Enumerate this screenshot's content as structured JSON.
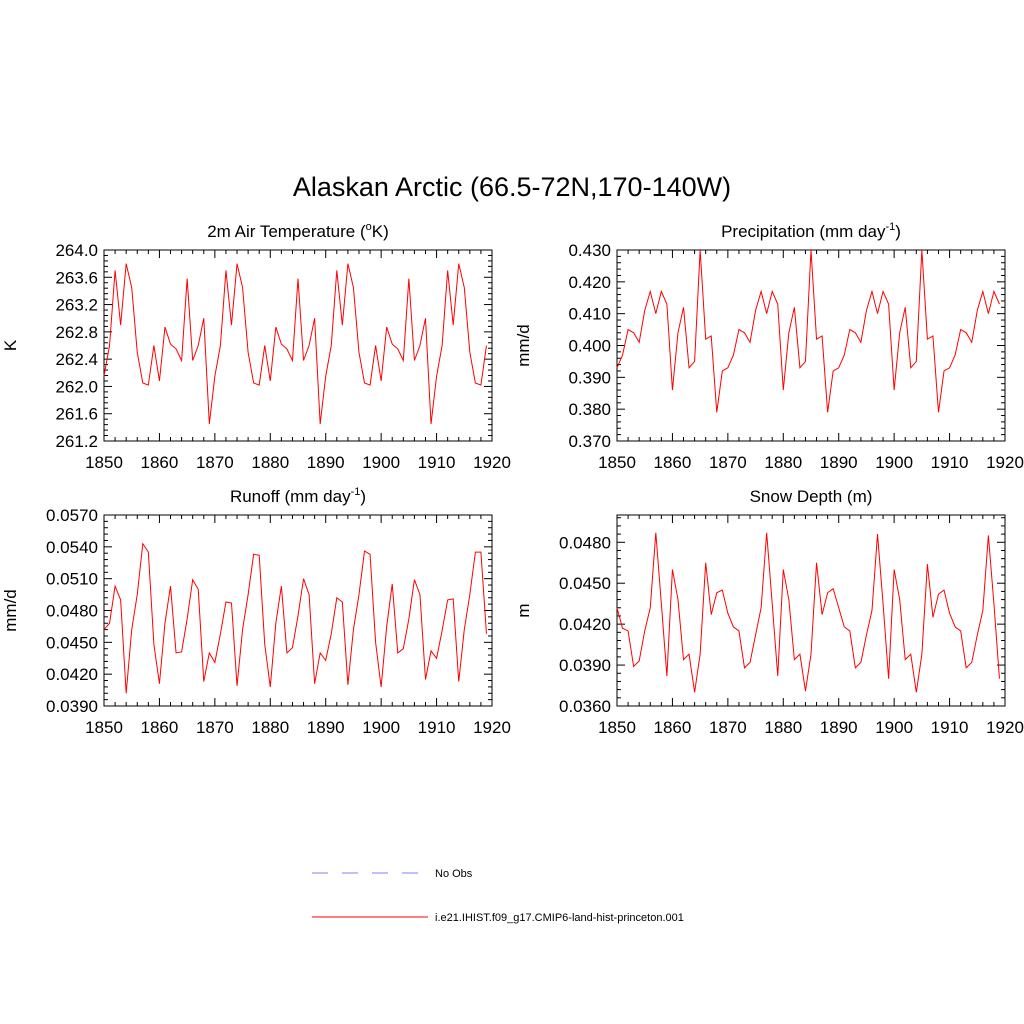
{
  "figure": {
    "title": "Alaskan Arctic (66.5-72N,170-140W)",
    "legend": [
      {
        "label": "No Obs",
        "color": "#9999ff",
        "dash": "dashed"
      },
      {
        "label": "i.e21.IHIST.f09_g17.CMIP6-land-hist-princeton.001",
        "color": "#ff0000",
        "dash": "solid"
      }
    ]
  },
  "chart_data": [
    {
      "type": "line",
      "title": "2m Air Temperature (",
      "title_sup": "o",
      "title_tail": "K)",
      "ylabel": "K",
      "xlabel": "",
      "xlim": [
        1850,
        1920
      ],
      "ylim": [
        261.2,
        264.0
      ],
      "x_ticks": [
        "1850",
        "1860",
        "1870",
        "1880",
        "1890",
        "1900",
        "1910",
        "1920"
      ],
      "y_ticks": [
        "264.0",
        "263.6",
        "263.2",
        "262.8",
        "262.4",
        "262.0",
        "261.6",
        "261.2"
      ],
      "x_start": 1850,
      "series": [
        {
          "color": "#ff0000",
          "values": [
            262.15,
            262.6,
            263.7,
            262.9,
            263.8,
            263.45,
            262.5,
            262.05,
            262.02,
            262.6,
            262.08,
            262.87,
            262.62,
            262.55,
            262.38,
            263.58,
            262.38,
            262.6,
            263.0,
            261.45,
            262.15,
            262.6,
            263.7,
            262.9,
            263.8,
            263.45,
            262.5,
            262.05,
            262.02,
            262.6,
            262.08,
            262.87,
            262.62,
            262.55,
            262.38,
            263.58,
            262.38,
            262.6,
            263.0,
            261.45,
            262.15,
            262.6,
            263.7,
            262.9,
            263.8,
            263.45,
            262.5,
            262.05,
            262.02,
            262.6,
            262.08,
            262.87,
            262.62,
            262.55,
            262.38,
            263.58,
            262.38,
            262.6,
            263.0,
            261.45,
            262.15,
            262.6,
            263.7,
            262.9,
            263.8,
            263.45,
            262.5,
            262.05,
            262.02,
            262.6
          ]
        }
      ]
    },
    {
      "type": "line",
      "title": "Precipitation (mm day",
      "title_sup": "-1",
      "title_tail": ")",
      "ylabel": "mm/d",
      "xlabel": "",
      "xlim": [
        1850,
        1920
      ],
      "ylim": [
        0.37,
        0.43
      ],
      "x_ticks": [
        "1850",
        "1860",
        "1870",
        "1880",
        "1890",
        "1900",
        "1910",
        "1920"
      ],
      "y_ticks": [
        "0.430",
        "0.420",
        "0.410",
        "0.400",
        "0.390",
        "0.380",
        "0.370"
      ],
      "x_start": 1850,
      "series": [
        {
          "color": "#ff0000",
          "values": [
            0.393,
            0.397,
            0.405,
            0.404,
            0.401,
            0.411,
            0.417,
            0.41,
            0.417,
            0.413,
            0.386,
            0.404,
            0.412,
            0.393,
            0.395,
            0.43,
            0.402,
            0.403,
            0.379,
            0.392,
            0.393,
            0.397,
            0.405,
            0.404,
            0.401,
            0.411,
            0.417,
            0.41,
            0.417,
            0.413,
            0.386,
            0.404,
            0.412,
            0.393,
            0.395,
            0.43,
            0.402,
            0.403,
            0.379,
            0.392,
            0.393,
            0.397,
            0.405,
            0.404,
            0.401,
            0.411,
            0.417,
            0.41,
            0.417,
            0.413,
            0.386,
            0.404,
            0.412,
            0.393,
            0.395,
            0.43,
            0.402,
            0.403,
            0.379,
            0.392,
            0.393,
            0.397,
            0.405,
            0.404,
            0.401,
            0.411,
            0.417,
            0.41,
            0.417,
            0.413
          ]
        }
      ]
    },
    {
      "type": "line",
      "title": "Runoff (mm day",
      "title_sup": "-1",
      "title_tail": ")",
      "ylabel": "mm/d",
      "xlabel": "",
      "xlim": [
        1850,
        1920
      ],
      "ylim": [
        0.039,
        0.057
      ],
      "x_ticks": [
        "1850",
        "1860",
        "1870",
        "1880",
        "1890",
        "1900",
        "1910",
        "1920"
      ],
      "y_ticks": [
        "0.0570",
        "0.0540",
        "0.0510",
        "0.0480",
        "0.0450",
        "0.0420",
        "0.0390"
      ],
      "x_start": 1850,
      "series": [
        {
          "color": "#ff0000",
          "values": [
            0.0462,
            0.0468,
            0.0503,
            0.049,
            0.0402,
            0.0462,
            0.0495,
            0.0543,
            0.0535,
            0.0448,
            0.0411,
            0.0468,
            0.0503,
            0.044,
            0.0441,
            0.0472,
            0.0509,
            0.05,
            0.0413,
            0.044,
            0.0431,
            0.0458,
            0.0488,
            0.0487,
            0.0409,
            0.0462,
            0.0495,
            0.0533,
            0.0532,
            0.0448,
            0.0408,
            0.0468,
            0.0503,
            0.044,
            0.0445,
            0.0475,
            0.051,
            0.0495,
            0.0411,
            0.044,
            0.0433,
            0.0458,
            0.0492,
            0.0488,
            0.041,
            0.0462,
            0.0495,
            0.0536,
            0.0533,
            0.045,
            0.0408,
            0.0465,
            0.0505,
            0.044,
            0.0444,
            0.0472,
            0.0509,
            0.0495,
            0.0415,
            0.0442,
            0.0435,
            0.0461,
            0.049,
            0.0491,
            0.0413,
            0.0462,
            0.0495,
            0.0535,
            0.0535,
            0.0458
          ]
        }
      ]
    },
    {
      "type": "line",
      "title": "Snow Depth (m)",
      "title_sup": "",
      "title_tail": "",
      "ylabel": "m",
      "xlabel": "",
      "xlim": [
        1850,
        1920
      ],
      "ylim": [
        0.036,
        0.05
      ],
      "x_ticks": [
        "1850",
        "1860",
        "1870",
        "1880",
        "1890",
        "1900",
        "1910",
        "1920"
      ],
      "y_ticks": [
        "0.0480",
        "0.0450",
        "0.0420",
        "0.0390",
        "0.0360"
      ],
      "x_start": 1850,
      "series": [
        {
          "color": "#ff0000",
          "values": [
            0.0432,
            0.0417,
            0.0415,
            0.0389,
            0.0393,
            0.0415,
            0.0432,
            0.0487,
            0.0435,
            0.0382,
            0.046,
            0.0438,
            0.0394,
            0.0398,
            0.037,
            0.0398,
            0.0465,
            0.0427,
            0.0443,
            0.0445,
            0.0428,
            0.0418,
            0.0415,
            0.0388,
            0.0392,
            0.0412,
            0.0432,
            0.0487,
            0.0435,
            0.0382,
            0.046,
            0.0438,
            0.0394,
            0.0398,
            0.0371,
            0.0398,
            0.0465,
            0.0427,
            0.0443,
            0.0446,
            0.0432,
            0.0418,
            0.0415,
            0.0388,
            0.0392,
            0.0412,
            0.043,
            0.0486,
            0.0435,
            0.038,
            0.046,
            0.0438,
            0.0394,
            0.0398,
            0.037,
            0.0398,
            0.0464,
            0.0425,
            0.0442,
            0.0445,
            0.0428,
            0.0418,
            0.0415,
            0.0388,
            0.0392,
            0.0412,
            0.043,
            0.0485,
            0.0435,
            0.038
          ]
        }
      ]
    }
  ]
}
